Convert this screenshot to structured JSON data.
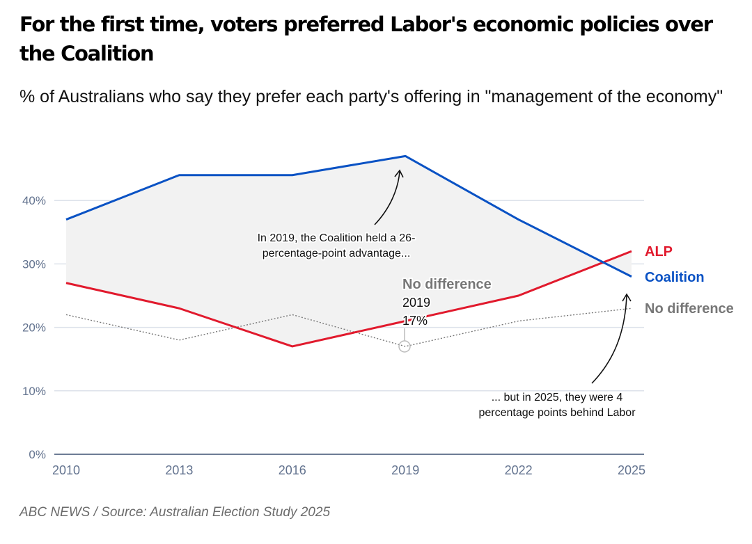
{
  "header": {
    "title": "For the first time, voters preferred Labor's economic policies over the Coalition",
    "subtitle": "% of Australians who say they prefer each party's offering in \"management of the economy\""
  },
  "footer": {
    "source": "ABC NEWS / Source: Australian Election Study 2025"
  },
  "chart_data": {
    "type": "line",
    "title": "For the first time, voters preferred Labor's economic policies over the Coalition",
    "subtitle": "% of Australians who say they prefer each party's offering in \"management of the economy\"",
    "xlabel": "",
    "ylabel": "",
    "x": [
      2010,
      2013,
      2016,
      2019,
      2022,
      2025
    ],
    "x_tick_labels": [
      "2010",
      "2013",
      "2016",
      "2019",
      "2022",
      "2025"
    ],
    "ylim": [
      0,
      50
    ],
    "y_ticks": [
      0,
      10,
      20,
      30,
      40
    ],
    "y_tick_labels": [
      "0%",
      "10%",
      "20%",
      "30%",
      "40%"
    ],
    "grid": true,
    "legend": "direct-labels-right",
    "series": [
      {
        "name": "Coalition",
        "label": "Coalition",
        "color": "#0a52c4",
        "style": "solid",
        "values": [
          37,
          44,
          44,
          47,
          37,
          28
        ]
      },
      {
        "name": "ALP",
        "label": "ALP",
        "color": "#e11a2d",
        "style": "solid",
        "values": [
          27,
          23,
          17,
          21,
          25,
          32
        ]
      },
      {
        "name": "No difference",
        "label": "No difference",
        "color": "#777777",
        "style": "dotted",
        "values": [
          22,
          18,
          22,
          17,
          21,
          23
        ]
      }
    ],
    "gap_fill_color": "#f2f2f2",
    "annotations": [
      {
        "id": "coalition-2019",
        "lines": [
          "In 2019, the Coalition held a 26-",
          "percentage-point advantage..."
        ]
      },
      {
        "id": "coalition-2025",
        "lines": [
          "... but in 2025, they were 4",
          "percentage points behind Labor"
        ]
      }
    ],
    "tooltip": {
      "series": "No difference",
      "year": "2019",
      "value": "17%"
    }
  }
}
